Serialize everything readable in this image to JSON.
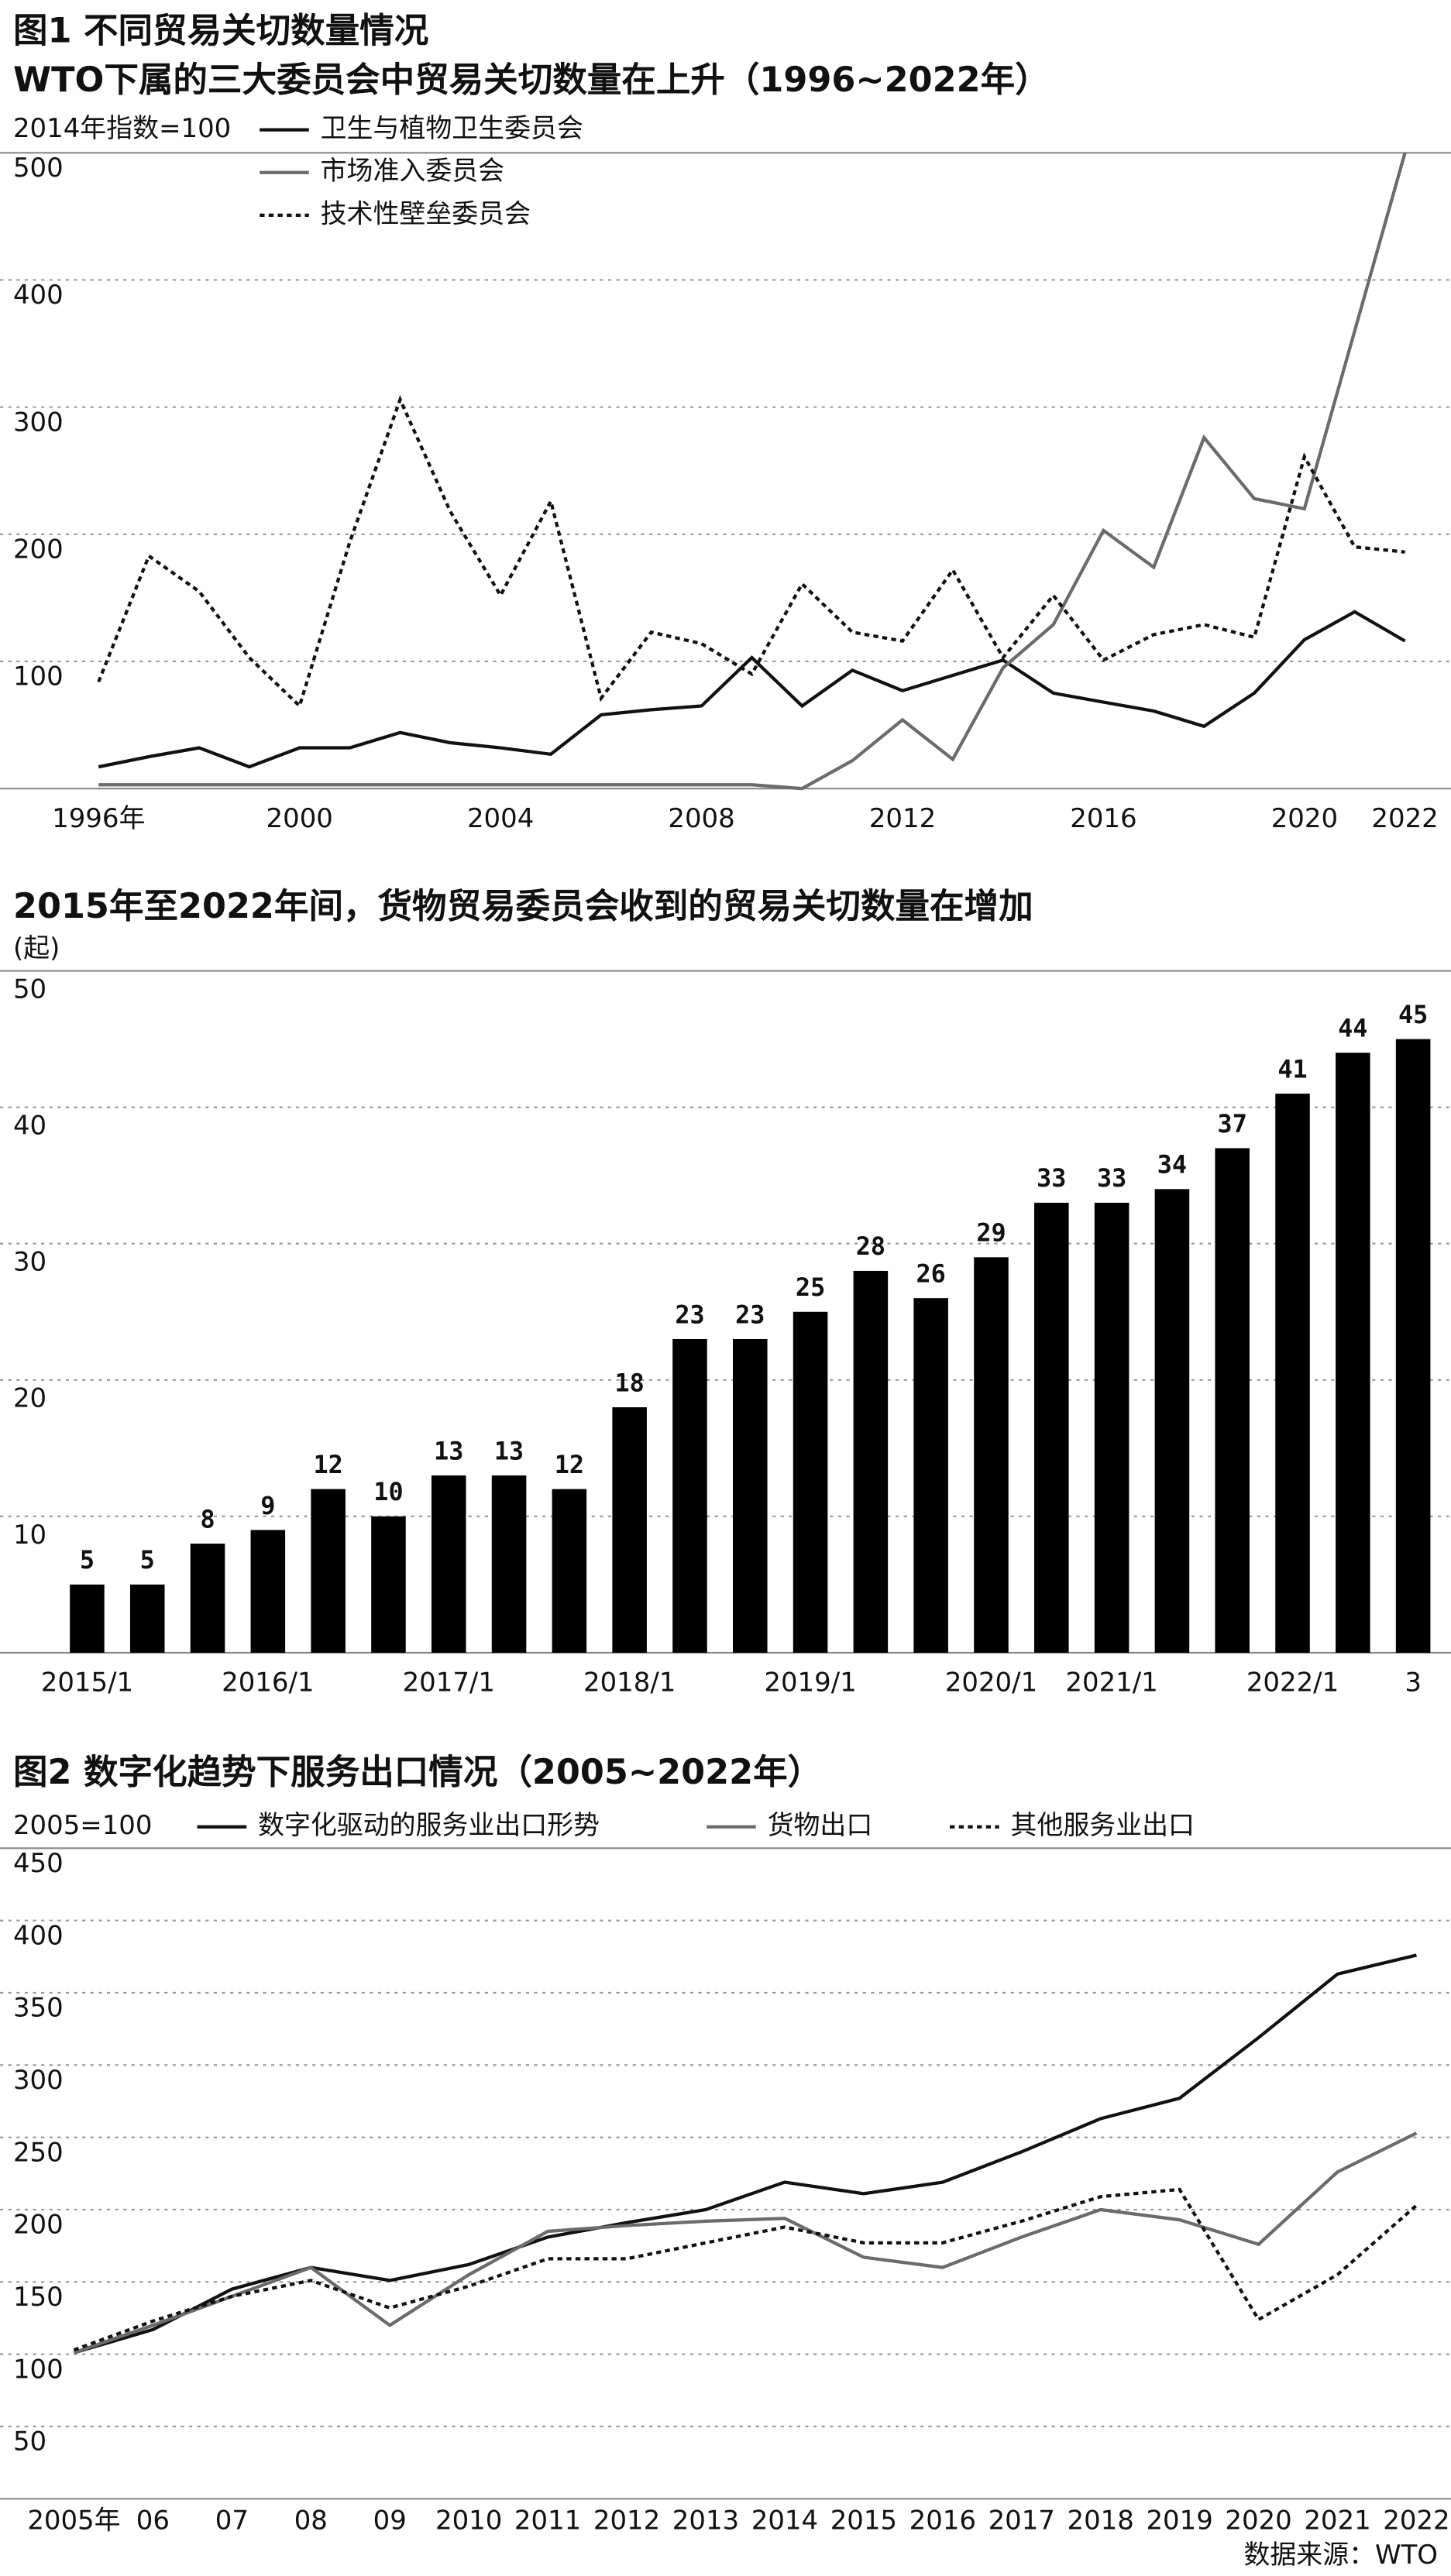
{
  "figure1_title": "图1 不同贸易关切数量情况",
  "source": "数据来源：WTO",
  "chart_data": [
    {
      "type": "line",
      "title": "WTO下属的三大委员会中贸易关切数量在上升（1996~2022年）",
      "y_label": "2014年指数=100",
      "x": [
        1996,
        1997,
        1998,
        1999,
        2000,
        2001,
        2002,
        2003,
        2004,
        2005,
        2006,
        2007,
        2008,
        2009,
        2010,
        2011,
        2012,
        2013,
        2014,
        2015,
        2016,
        2017,
        2018,
        2019,
        2020,
        2021,
        2022
      ],
      "xlim": [
        1996,
        2022
      ],
      "xticks": [
        {
          "value": 1996,
          "label": "1996年"
        },
        2000,
        2004,
        2008,
        2012,
        2016,
        2020,
        2022
      ],
      "ylim": [
        0,
        500
      ],
      "yticks": [
        100,
        200,
        300,
        400,
        500
      ],
      "grid": true,
      "series": [
        {
          "name": "卫生与植物卫生委员会",
          "color": "#111111",
          "line_style": "solid",
          "values": [
            17,
            25,
            32,
            17,
            32,
            32,
            44,
            36,
            32,
            27,
            58,
            62,
            65,
            103,
            65,
            93,
            77,
            89,
            101,
            75,
            68,
            61,
            49,
            75,
            117,
            139,
            116
          ]
        },
        {
          "name": "市场准入委员会",
          "color": "#6b6b6b",
          "line_style": "solid",
          "values": [
            3,
            3,
            3,
            3,
            3,
            3,
            3,
            3,
            3,
            3,
            3,
            3,
            3,
            3,
            0,
            22,
            54,
            23,
            95,
            129,
            203,
            174,
            276,
            228,
            220,
            360,
            500
          ]
        },
        {
          "name": "技术性壁垒委员会",
          "color": "#111111",
          "line_style": "dotted",
          "values": [
            84,
            183,
            155,
            103,
            65,
            194,
            306,
            218,
            152,
            226,
            71,
            123,
            114,
            90,
            161,
            123,
            116,
            172,
            103,
            152,
            101,
            121,
            129,
            119,
            261,
            190,
            186
          ]
        }
      ]
    },
    {
      "type": "bar",
      "title": "2015年至2022年间，货物贸易委员会收到的贸易关切数量在增加",
      "y_label": "(起)",
      "categories": [
        "2015/1",
        null,
        null,
        "2016/1",
        null,
        null,
        "2017/1",
        null,
        null,
        "2018/1",
        null,
        null,
        "2019/1",
        null,
        null,
        "2020/1",
        null,
        "2021/1",
        null,
        null,
        "2022/1",
        null,
        "3"
      ],
      "values": [
        5,
        5,
        8,
        9,
        12,
        10,
        13,
        13,
        12,
        18,
        23,
        23,
        25,
        28,
        26,
        29,
        33,
        33,
        34,
        37,
        41,
        44,
        45
      ],
      "color": "#000000",
      "ylim": [
        0,
        50
      ],
      "yticks": [
        10,
        20,
        30,
        40,
        50
      ],
      "grid": true
    },
    {
      "type": "line",
      "title": "图2 数字化趋势下服务出口情况（2005~2022年）",
      "y_label": "2005=100",
      "x": [
        2005,
        2006,
        2007,
        2008,
        2009,
        2010,
        2011,
        2012,
        2013,
        2014,
        2015,
        2016,
        2017,
        2018,
        2019,
        2020,
        2021,
        2022
      ],
      "xlim": [
        2005,
        2022
      ],
      "xticks": [
        {
          "value": 2005,
          "label": "2005年"
        },
        {
          "value": 2006,
          "label": "06"
        },
        {
          "value": 2007,
          "label": "07"
        },
        {
          "value": 2008,
          "label": "08"
        },
        {
          "value": 2009,
          "label": "09"
        },
        2010,
        2011,
        2012,
        2013,
        2014,
        2015,
        2016,
        2017,
        2018,
        2019,
        2020,
        2021,
        2022
      ],
      "ylim": [
        0,
        450
      ],
      "yticks": [
        50,
        100,
        150,
        200,
        250,
        300,
        350,
        400,
        450
      ],
      "grid": true,
      "series": [
        {
          "name": "数字化驱动的服务业出口形势",
          "color": "#111111",
          "line_style": "solid",
          "values": [
            101,
            117,
            145,
            160,
            151,
            162,
            181,
            191,
            200,
            219,
            211,
            219,
            240,
            263,
            277,
            319,
            363,
            376
          ]
        },
        {
          "name": "货物出口",
          "color": "#6b6b6b",
          "line_style": "solid",
          "values": [
            101,
            120,
            140,
            160,
            120,
            155,
            185,
            189,
            192,
            194,
            167,
            160,
            181,
            200,
            193,
            176,
            226,
            253
          ]
        },
        {
          "name": "其他服务业出口",
          "color": "#111111",
          "line_style": "dotted",
          "values": [
            103,
            123,
            140,
            151,
            132,
            147,
            166,
            166,
            177,
            188,
            177,
            177,
            192,
            209,
            214,
            124,
            155,
            203
          ]
        }
      ]
    }
  ]
}
